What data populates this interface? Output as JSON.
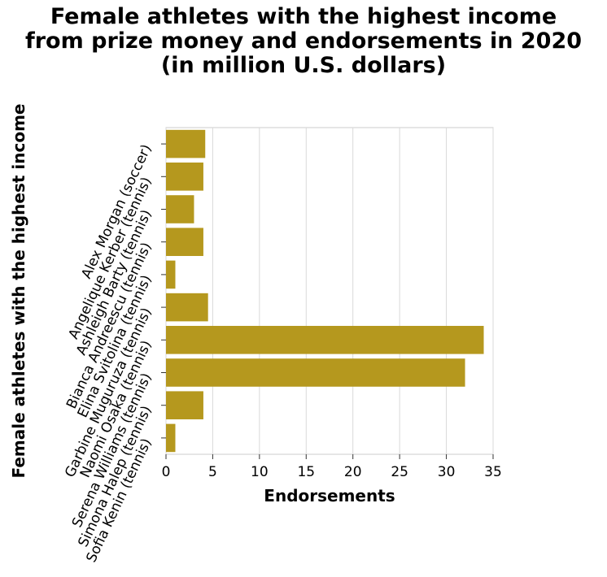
{
  "chart_data": {
    "type": "bar",
    "orientation": "horizontal",
    "title_lines": [
      "Female athletes with the highest income",
      "from prize money and endorsements in 2020",
      "(in million U.S. dollars)"
    ],
    "xlabel": "Endorsements",
    "ylabel": "Female athletes with the highest income",
    "xlim": [
      0,
      35
    ],
    "xticks": [
      0,
      5,
      10,
      15,
      20,
      25,
      30,
      35
    ],
    "grid": true,
    "bar_color": "#b5981e",
    "categories": [
      "Alex Morgan (soccer)",
      "Angelique Kerber (tennis)",
      "Ashleigh Barty (tennis)",
      "Bianca Andreescu (tennis)",
      "Elina Svitolina (tennis)",
      "Garbine Muguruza (tennis)",
      "Naomi Osaka (tennis)",
      "Serena Williams (tennis)",
      "Simona Halep (tennis)",
      "Sofia Kenin (tennis)"
    ],
    "values": [
      4.2,
      4.0,
      3.0,
      4.0,
      1.0,
      4.5,
      34.0,
      32.0,
      4.0,
      1.0
    ]
  }
}
